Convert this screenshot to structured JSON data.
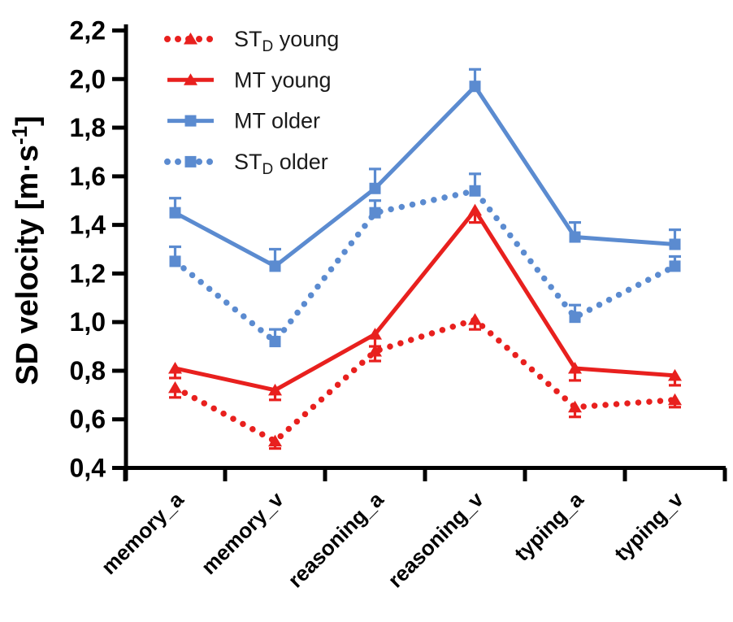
{
  "chart_data": {
    "type": "line",
    "title": "",
    "xlabel": "",
    "ylabel": "SD velocity [m·s⁻¹]",
    "ylabel_parts": {
      "main": "SD velocity [m·s",
      "sup": "-1",
      "close": "]"
    },
    "categories": [
      "memory_a",
      "memory_v",
      "reasoning_a",
      "reasoning_v",
      "typing_a",
      "typing_v"
    ],
    "ylim": [
      0.4,
      2.2
    ],
    "ytick_step": 0.2,
    "yticks": [
      {
        "v": 0.4,
        "label": "0,4"
      },
      {
        "v": 0.6,
        "label": "0,6"
      },
      {
        "v": 0.8,
        "label": "0,8"
      },
      {
        "v": 1.0,
        "label": "1,0"
      },
      {
        "v": 1.2,
        "label": "1,2"
      },
      {
        "v": 1.4,
        "label": "1,4"
      },
      {
        "v": 1.6,
        "label": "1,6"
      },
      {
        "v": 1.8,
        "label": "1,8"
      },
      {
        "v": 2.0,
        "label": "2,0"
      },
      {
        "v": 2.2,
        "label": "2,2"
      }
    ],
    "grid": false,
    "legend_position": "top-left-inside",
    "series": [
      {
        "id": "std-young",
        "label": "ST_D young",
        "label_parts": {
          "main": "ST",
          "sub": "D",
          "rest": " young"
        },
        "color": "#e8201e",
        "line": "dotted",
        "marker": "triangle",
        "error_direction": "down",
        "values": [
          0.73,
          0.51,
          0.88,
          1.01,
          0.65,
          0.68
        ],
        "errors": [
          0.04,
          0.03,
          0.04,
          0.04,
          0.04,
          0.03
        ]
      },
      {
        "id": "mt-young",
        "label": "MT young",
        "label_parts": {
          "main": "MT",
          "sub": "",
          "rest": " young"
        },
        "color": "#e8201e",
        "line": "solid",
        "marker": "triangle",
        "error_direction": "down",
        "values": [
          0.81,
          0.72,
          0.95,
          1.46,
          0.81,
          0.78
        ],
        "errors": [
          0.04,
          0.04,
          0.05,
          0.05,
          0.05,
          0.04
        ]
      },
      {
        "id": "mt-older",
        "label": "MT older",
        "label_parts": {
          "main": "MT",
          "sub": "",
          "rest": " older"
        },
        "color": "#5b8bd0",
        "line": "solid",
        "marker": "square",
        "error_direction": "up",
        "values": [
          1.45,
          1.23,
          1.55,
          1.97,
          1.35,
          1.32
        ],
        "errors": [
          0.06,
          0.07,
          0.08,
          0.07,
          0.06,
          0.06
        ]
      },
      {
        "id": "std-older",
        "label": "ST_D older",
        "label_parts": {
          "main": "ST",
          "sub": "D",
          "rest": " older"
        },
        "color": "#5b8bd0",
        "line": "dotted",
        "marker": "square",
        "error_direction": "up",
        "values": [
          1.25,
          0.92,
          1.45,
          1.54,
          1.02,
          1.23
        ],
        "errors": [
          0.06,
          0.05,
          0.05,
          0.07,
          0.05,
          0.04
        ]
      }
    ],
    "colors": {
      "red": "#e8201e",
      "blue": "#5b8bd0",
      "axis": "#000000",
      "background": "#ffffff"
    }
  }
}
